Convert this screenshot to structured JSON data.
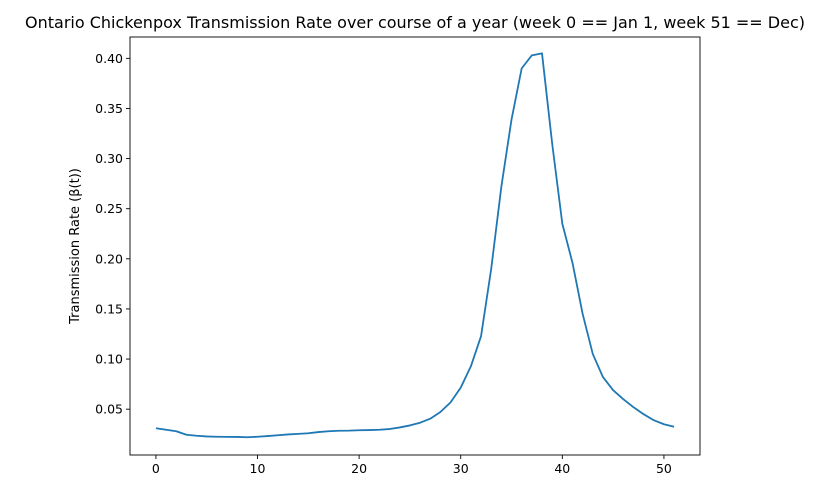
{
  "chart_data": {
    "type": "line",
    "title": "Ontario Chickenpox Transmission Rate over course of a year (week 0 == Jan 1, week 51 == Dec)",
    "xlabel": "",
    "ylabel": "Transmission Rate (β(t))",
    "xlim": [
      -2.55,
      53.55
    ],
    "ylim": [
      0.0043,
      0.4213
    ],
    "xticks": [
      0,
      10,
      20,
      30,
      40,
      50
    ],
    "yticks": [
      0.05,
      0.1,
      0.15,
      0.2,
      0.25,
      0.3,
      0.35,
      0.4
    ],
    "ytick_labels": [
      "0.05",
      "0.10",
      "0.15",
      "0.20",
      "0.25",
      "0.30",
      "0.35",
      "0.40"
    ],
    "grid": false,
    "series": [
      {
        "color": "#1f77b4",
        "x": [
          0,
          1,
          2,
          3,
          4,
          5,
          6,
          7,
          8,
          9,
          10,
          11,
          12,
          13,
          14,
          15,
          16,
          17,
          18,
          19,
          20,
          21,
          22,
          23,
          24,
          25,
          26,
          27,
          28,
          29,
          30,
          31,
          32,
          33,
          34,
          35,
          36,
          37,
          38,
          39,
          40,
          41,
          42,
          43,
          44,
          45,
          46,
          47,
          48,
          49,
          50,
          51
        ],
        "y": [
          0.031,
          0.0295,
          0.028,
          0.0245,
          0.0235,
          0.0228,
          0.0225,
          0.0224,
          0.0223,
          0.022,
          0.0225,
          0.0232,
          0.024,
          0.0248,
          0.0254,
          0.026,
          0.0272,
          0.028,
          0.0285,
          0.0286,
          0.029,
          0.0292,
          0.0295,
          0.0302,
          0.0318,
          0.0338,
          0.0365,
          0.0405,
          0.0472,
          0.0568,
          0.0715,
          0.0928,
          0.1228,
          0.19,
          0.272,
          0.339,
          0.39,
          0.403,
          0.405,
          0.315,
          0.235,
          0.196,
          0.145,
          0.105,
          0.082,
          0.069,
          0.06,
          0.052,
          0.045,
          0.039,
          0.035,
          0.0325
        ]
      }
    ]
  }
}
